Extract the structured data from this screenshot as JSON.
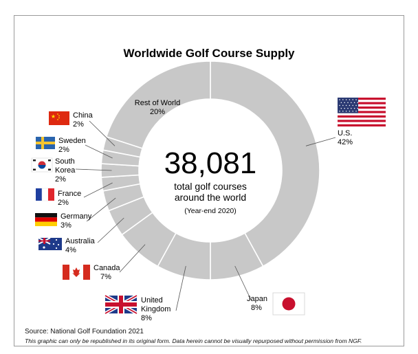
{
  "chart_data": {
    "type": "pie",
    "title": "Worldwide Golf Course Supply",
    "center": {
      "total": "38,081",
      "line1": "total golf courses",
      "line2": "around the world",
      "note": "(Year-end 2020)"
    },
    "slices": [
      {
        "name": "U.S.",
        "value": 42,
        "value_label": "42%",
        "flag": "us-flag-icon"
      },
      {
        "name": "Japan",
        "value": 8,
        "value_label": "8%",
        "flag": "japan-flag-icon"
      },
      {
        "name": "United Kingdom",
        "value": 8,
        "value_label": "8%",
        "flag": "uk-flag-icon"
      },
      {
        "name": "Canada",
        "value": 7,
        "value_label": "7%",
        "flag": "canada-flag-icon"
      },
      {
        "name": "Australia",
        "value": 4,
        "value_label": "4%",
        "flag": "australia-flag-icon"
      },
      {
        "name": "Germany",
        "value": 3,
        "value_label": "3%",
        "flag": "germany-flag-icon"
      },
      {
        "name": "France",
        "value": 2,
        "value_label": "2%",
        "flag": "france-flag-icon"
      },
      {
        "name": "South Korea",
        "value": 2,
        "value_label": "2%",
        "flag": "south-korea-flag-icon"
      },
      {
        "name": "Sweden",
        "value": 2,
        "value_label": "2%",
        "flag": "sweden-flag-icon"
      },
      {
        "name": "China",
        "value": 2,
        "value_label": "2%",
        "flag": "china-flag-icon"
      },
      {
        "name": "Rest of World",
        "value": 20,
        "value_label": "20%",
        "flag": ""
      }
    ],
    "colors": {
      "slice": "#c8c8c8",
      "separator": "#ffffff",
      "leader": "#555555"
    }
  },
  "source": "Source: National Golf Foundation 2021",
  "disclaimer": "This graphic can only be republished in its original form. Data herein cannot be visually repurposed without permission from NGF."
}
